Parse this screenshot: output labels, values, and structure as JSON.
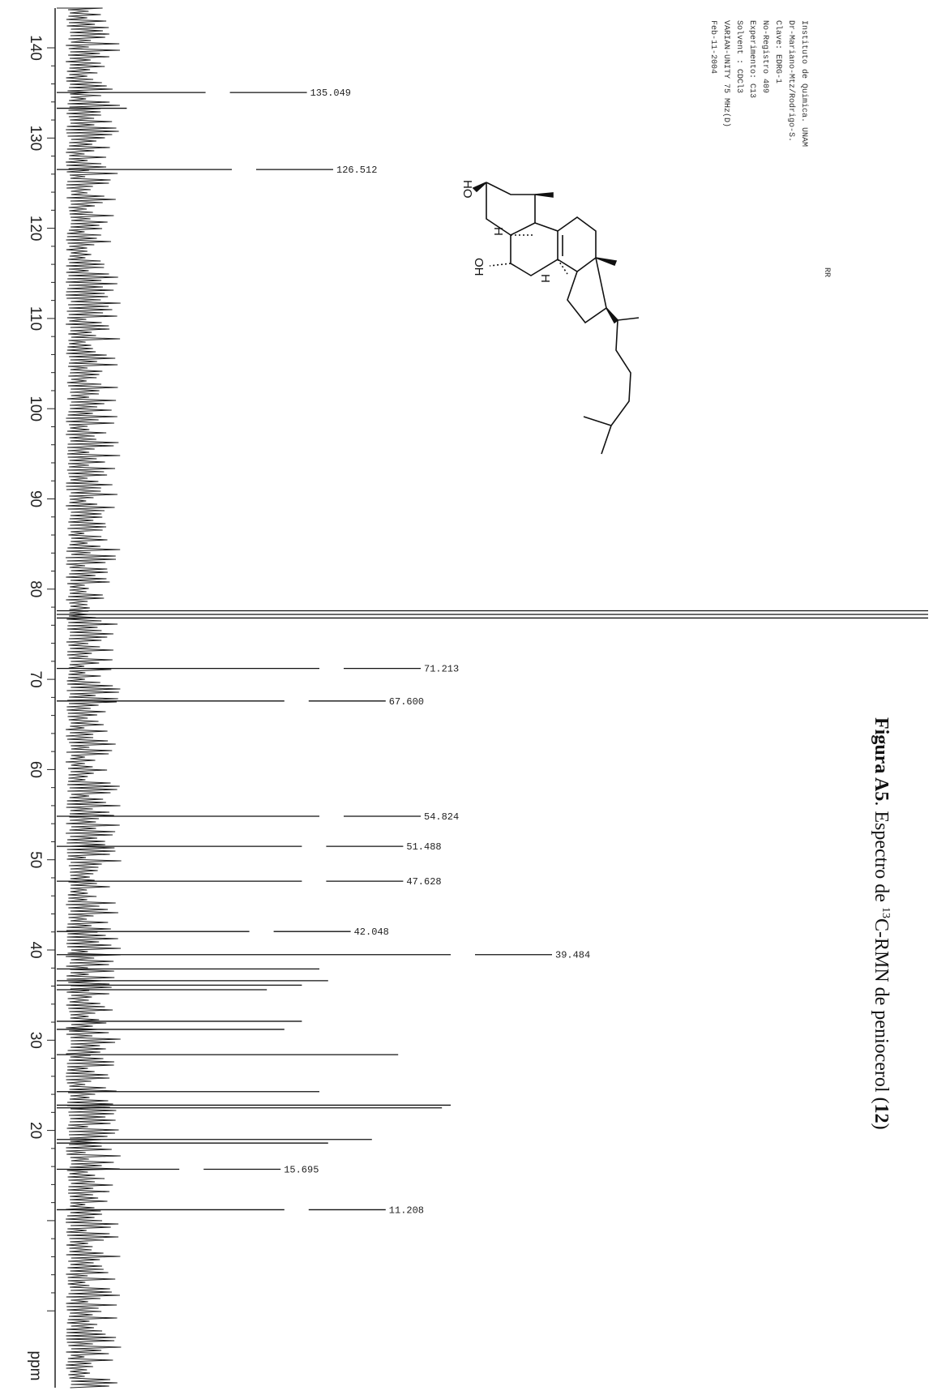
{
  "chart_data": {
    "type": "line",
    "title": "",
    "xlabel": "ppm",
    "ylabel": "",
    "xlim": [
      143,
      0
    ],
    "x_ticks": [
      140,
      130,
      120,
      110,
      100,
      90,
      80,
      70,
      60,
      50,
      40,
      30,
      20
    ],
    "grid": false,
    "peaks": [
      {
        "ppm": 135.049,
        "intensity": 0.17,
        "label": "135.049"
      },
      {
        "ppm": 133.3,
        "intensity": 0.08
      },
      {
        "ppm": 126.512,
        "intensity": 0.2,
        "label": "126.512"
      },
      {
        "ppm": 77.6,
        "intensity": 1.0
      },
      {
        "ppm": 77.2,
        "intensity": 1.0
      },
      {
        "ppm": 76.8,
        "intensity": 1.0
      },
      {
        "ppm": 71.213,
        "intensity": 0.3,
        "label": "71.213"
      },
      {
        "ppm": 67.6,
        "intensity": 0.26,
        "label": "67.600"
      },
      {
        "ppm": 54.824,
        "intensity": 0.3,
        "label": "54.824"
      },
      {
        "ppm": 51.488,
        "intensity": 0.28,
        "label": "51.488"
      },
      {
        "ppm": 47.628,
        "intensity": 0.28,
        "label": "47.628"
      },
      {
        "ppm": 42.048,
        "intensity": 0.22,
        "label": "42.048"
      },
      {
        "ppm": 39.484,
        "intensity": 0.45,
        "label": "39.484"
      },
      {
        "ppm": 37.9,
        "intensity": 0.3
      },
      {
        "ppm": 36.6,
        "intensity": 0.31
      },
      {
        "ppm": 36.1,
        "intensity": 0.28
      },
      {
        "ppm": 35.6,
        "intensity": 0.24
      },
      {
        "ppm": 32.1,
        "intensity": 0.28
      },
      {
        "ppm": 31.2,
        "intensity": 0.26
      },
      {
        "ppm": 28.4,
        "intensity": 0.39
      },
      {
        "ppm": 24.3,
        "intensity": 0.3
      },
      {
        "ppm": 22.8,
        "intensity": 0.45
      },
      {
        "ppm": 22.5,
        "intensity": 0.44
      },
      {
        "ppm": 19.0,
        "intensity": 0.36
      },
      {
        "ppm": 18.6,
        "intensity": 0.31
      },
      {
        "ppm": 15.695,
        "intensity": 0.14,
        "label": "15.695"
      },
      {
        "ppm": 11.208,
        "intensity": 0.26,
        "label": "11.208"
      }
    ]
  },
  "header": {
    "lines": [
      "Instituto de Quimica. UNAM",
      "Dr-Mariano-Mtz/Rodrigo-S.",
      "Clave: EDRG-1",
      "No-Registro 409",
      "Experimento: C13",
      "Solvent : CDCl3",
      "VARIAN-UNITY 75 MHz(D)",
      "Feb-11-2004"
    ],
    "code": "RR"
  },
  "structure": {
    "labels": {
      "oh_top": "HO",
      "h1": "H",
      "oh_bottom": "OH",
      "h2": "H"
    }
  },
  "caption": {
    "bold": "Figura A5",
    "text_before_sup": ". Espectro de ",
    "sup": "13",
    "text_after_sup": "C-RMN de peniocerol (",
    "number": "12",
    "close": ")"
  }
}
